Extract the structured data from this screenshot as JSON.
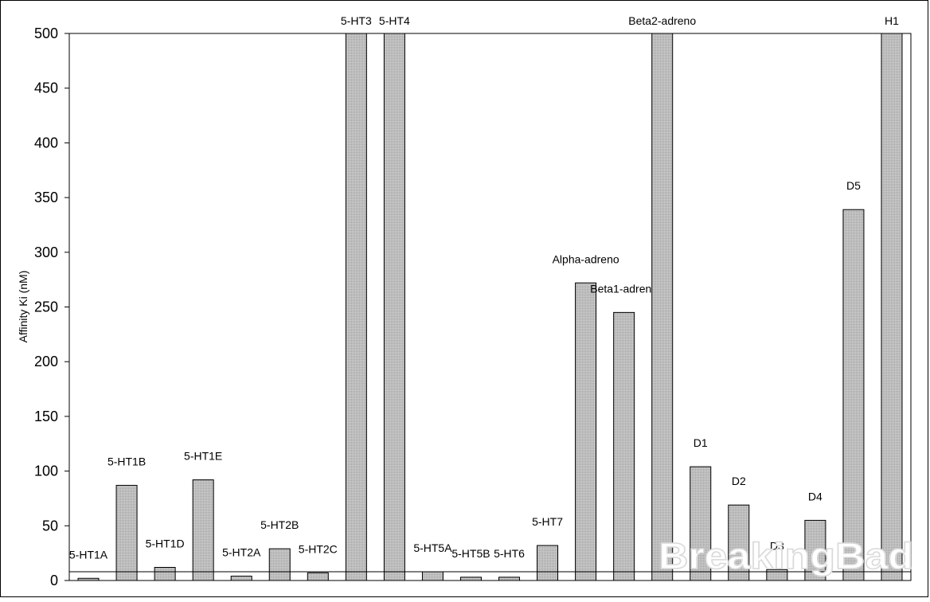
{
  "chart_data": {
    "type": "bar",
    "title": "",
    "xlabel": "",
    "ylabel": "Affinity Ki (nM)",
    "ylim": [
      0,
      500
    ],
    "yticks": [
      0,
      50,
      100,
      150,
      200,
      250,
      300,
      350,
      400,
      450,
      500
    ],
    "grid": false,
    "legend": "none",
    "bar_color": "#c8c8c8",
    "reference_line": 8,
    "categories": [
      "5-HT1A",
      "5-HT1B",
      "5-HT1D",
      "5-HT1E",
      "5-HT2A",
      "5-HT2B",
      "5-HT2C",
      "5-HT3",
      "5-HT4",
      "5-HT5A",
      "5-HT5B",
      "5-HT6",
      "5-HT7",
      "Alpha-adreno",
      "Beta1-adreno",
      "Beta2-adreno",
      "D1",
      "D2",
      "D3",
      "D4",
      "D5",
      "H1"
    ],
    "values": [
      2,
      87,
      12,
      92,
      4,
      29,
      7,
      500,
      500,
      8,
      3,
      3,
      32,
      272,
      245,
      500,
      104,
      69,
      10,
      55,
      339,
      500
    ]
  },
  "watermark": "BreakingBad"
}
